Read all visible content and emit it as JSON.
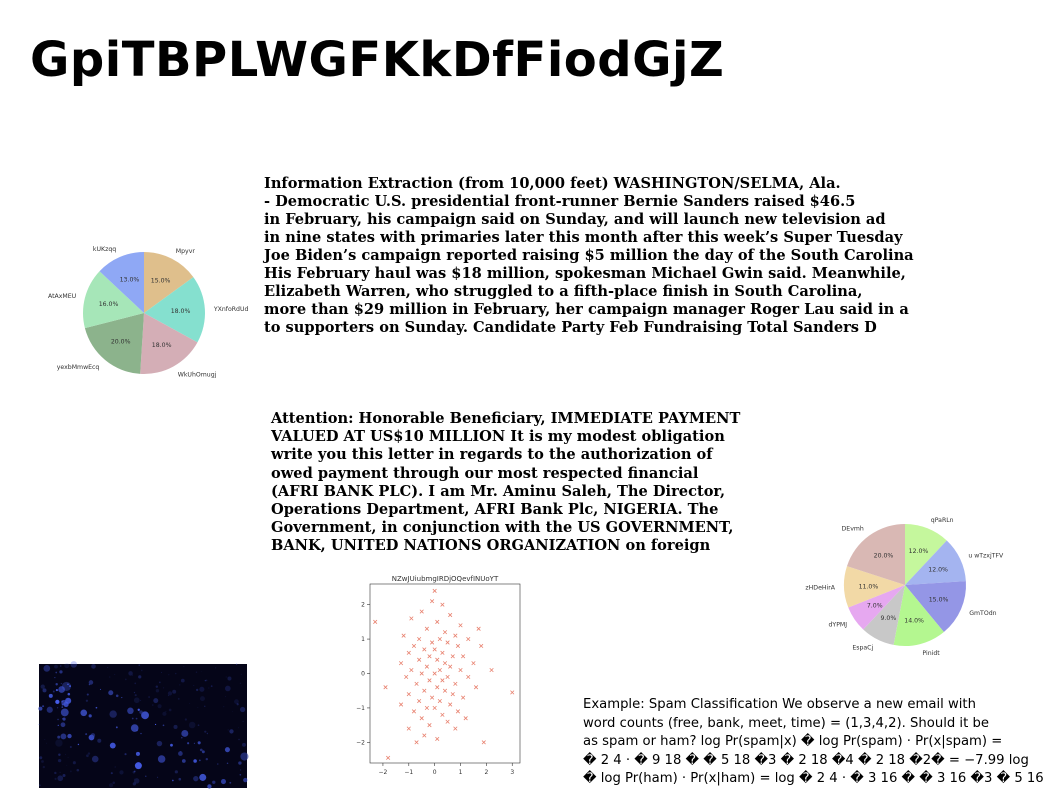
{
  "title": "GpiTBPLWGFKkDfFiodGjZ",
  "paragraph1": [
    "Information Extraction (from 10,000 feet) WASHINGTON/SELMA, Ala.",
    "- Democratic U.S. presidential front-runner Bernie Sanders raised $46.5",
    "in February, his campaign said on Sunday, and will launch new television ad",
    "in nine states with primaries later this month after this week’s Super Tuesday",
    "Joe Biden’s campaign reported raising $5 million the day of the South Carolina",
    "His February haul was $18 million, spokesman Michael Gwin said. Meanwhile,",
    "Elizabeth Warren, who struggled to a fifth-place finish in South Carolina,",
    "more than $29 million in February, her campaign manager Roger Lau said in a",
    "to supporters on Sunday. Candidate Party Feb Fundraising Total Sanders D"
  ],
  "paragraph2": [
    "Attention: Honorable Beneficiary, IMMEDIATE PAYMENT",
    "VALUED AT US$10 MILLION It is my modest obligation",
    "write you this letter in regards to the authorization of",
    "owed payment through our most respected financial",
    "(AFRI BANK PLC). I am Mr. Aminu Saleh, The Director,",
    "Operations Department, AFRI Bank Plc, NIGERIA. The",
    "Government, in conjunction with the US GOVERNMENT,",
    "BANK, UNITED NATIONS ORGANIZATION on foreign"
  ],
  "paragraph3": [
    "Example: Spam Classification We observe a new email with",
    "word counts (free, bank, meet, time) = (1,3,4,2). Should it be",
    "as spam or ham? log Pr(spam|x) � log Pr(spam) · Pr(x|spam) =",
    "� 2 4 · � 9 18 � � 5 18 �3 � 2 18 �4 � 2 18 �2� = −7.99 log",
    "� log Pr(ham) · Pr(x|ham) = log � 2 4 · � 3 16 � � 3 16 �3 � 5 16"
  ],
  "chart_data": [
    {
      "type": "pie",
      "title": "",
      "labels": [
        "Mpyvr",
        "YXnfoRdUd",
        "WkUhOmugj",
        "yexbMmwEcq",
        "AtAxMEU",
        "kUKzqq"
      ],
      "values": [
        15.0,
        18.0,
        18.0,
        20.0,
        16.0,
        13.0
      ],
      "value_labels": [
        "15.0%",
        "18.0%",
        "18.0%",
        "20.0%",
        "16.0%",
        "13.0%"
      ],
      "colors": [
        "#dfbf8c",
        "#85e0cf",
        "#d4aeb6",
        "#8cb38c",
        "#a6e6b8",
        "#8fa8f5"
      ],
      "start_angle_deg": 90,
      "direction": "clockwise"
    },
    {
      "type": "pie",
      "title": "",
      "labels": [
        "qPaRLn",
        "u wTzxjTFV",
        "GmTOdn",
        "Pinidt",
        "EspaCj",
        "dYPMJ",
        "zHDeHirA",
        "DEvmh"
      ],
      "values": [
        12.0,
        12.0,
        15.0,
        14.0,
        9.0,
        7.0,
        11.0,
        20.0
      ],
      "value_labels": [
        "12.0%",
        "12.0%",
        "15.0%",
        "14.0%",
        "9.0%",
        "7.0%",
        "11.0%",
        "20.0%"
      ],
      "colors": [
        "#c5f79d",
        "#a4b4f0",
        "#9496e6",
        "#b4f790",
        "#c8c8c8",
        "#e6a8f0",
        "#f2d9a6",
        "#d9b8b4"
      ],
      "start_angle_deg": 90,
      "direction": "clockwise"
    },
    {
      "type": "scatter",
      "title": "NZwJUiubmgIRDjOQevfINUoYT",
      "marker": "x",
      "color": "#e8806e",
      "xlim": [
        -2.5,
        3.3
      ],
      "ylim": [
        -2.6,
        2.6
      ],
      "xticks": [
        -2,
        -1,
        0,
        1,
        2,
        3
      ],
      "yticks": [
        -2,
        -1,
        0,
        1,
        2
      ],
      "points": [
        [
          0.0,
          2.4
        ],
        [
          -0.1,
          2.1
        ],
        [
          0.3,
          2.0
        ],
        [
          -0.5,
          1.8
        ],
        [
          0.6,
          1.7
        ],
        [
          -0.9,
          1.6
        ],
        [
          -2.3,
          1.5
        ],
        [
          0.1,
          1.5
        ],
        [
          1.0,
          1.4
        ],
        [
          1.7,
          1.3
        ],
        [
          -0.3,
          1.3
        ],
        [
          0.4,
          1.2
        ],
        [
          -1.2,
          1.1
        ],
        [
          0.8,
          1.1
        ],
        [
          -0.6,
          1.0
        ],
        [
          0.2,
          1.0
        ],
        [
          1.3,
          1.0
        ],
        [
          -0.1,
          0.9
        ],
        [
          0.5,
          0.9
        ],
        [
          -0.8,
          0.8
        ],
        [
          0.9,
          0.8
        ],
        [
          1.8,
          0.8
        ],
        [
          -0.4,
          0.7
        ],
        [
          0.0,
          0.7
        ],
        [
          0.3,
          0.6
        ],
        [
          -1.0,
          0.6
        ],
        [
          0.7,
          0.5
        ],
        [
          -0.2,
          0.5
        ],
        [
          1.1,
          0.5
        ],
        [
          -0.6,
          0.4
        ],
        [
          0.1,
          0.4
        ],
        [
          -1.3,
          0.3
        ],
        [
          0.4,
          0.3
        ],
        [
          1.5,
          0.3
        ],
        [
          -0.3,
          0.2
        ],
        [
          0.6,
          0.2
        ],
        [
          -0.9,
          0.1
        ],
        [
          0.2,
          0.1
        ],
        [
          1.0,
          0.1
        ],
        [
          2.2,
          0.1
        ],
        [
          -0.5,
          0.0
        ],
        [
          0.0,
          0.0
        ],
        [
          0.5,
          -0.1
        ],
        [
          -1.1,
          -0.1
        ],
        [
          1.3,
          -0.1
        ],
        [
          -0.2,
          -0.2
        ],
        [
          0.3,
          -0.2
        ],
        [
          -0.7,
          -0.3
        ],
        [
          0.8,
          -0.3
        ],
        [
          -1.9,
          -0.4
        ],
        [
          0.1,
          -0.4
        ],
        [
          1.6,
          -0.4
        ],
        [
          -0.4,
          -0.5
        ],
        [
          0.4,
          -0.5
        ],
        [
          -1.0,
          -0.6
        ],
        [
          0.7,
          -0.6
        ],
        [
          3.0,
          -0.55
        ],
        [
          -0.1,
          -0.7
        ],
        [
          1.1,
          -0.7
        ],
        [
          -0.6,
          -0.8
        ],
        [
          0.2,
          -0.8
        ],
        [
          -1.3,
          -0.9
        ],
        [
          0.6,
          -0.9
        ],
        [
          -0.3,
          -1.0
        ],
        [
          0.0,
          -1.0
        ],
        [
          0.9,
          -1.1
        ],
        [
          -0.8,
          -1.1
        ],
        [
          0.3,
          -1.2
        ],
        [
          -0.5,
          -1.3
        ],
        [
          1.2,
          -1.3
        ],
        [
          0.5,
          -1.4
        ],
        [
          -0.2,
          -1.5
        ],
        [
          -1.0,
          -1.6
        ],
        [
          0.8,
          -1.6
        ],
        [
          -0.4,
          -1.8
        ],
        [
          0.1,
          -1.9
        ],
        [
          -0.7,
          -2.0
        ],
        [
          1.9,
          -2.0
        ],
        [
          -1.8,
          -2.45
        ]
      ]
    }
  ]
}
